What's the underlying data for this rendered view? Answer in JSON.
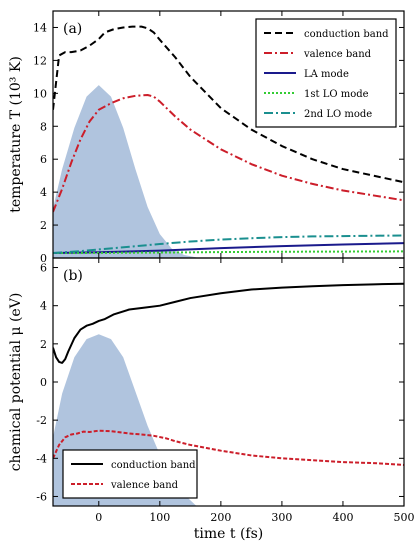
{
  "chart_data": [
    {
      "type": "line",
      "panel_label": "(a)",
      "ylabel": "temperature T (10³ K)",
      "xlim": [
        -75,
        500
      ],
      "ylim": [
        0,
        15
      ],
      "xticks": [
        0,
        100,
        200,
        300,
        400,
        500
      ],
      "yticks": [
        0,
        2,
        4,
        6,
        8,
        10,
        12,
        14
      ],
      "pulse": {
        "color": "#b0c4de",
        "x": [
          -75,
          -60,
          -40,
          -20,
          0,
          20,
          40,
          60,
          80,
          100,
          120,
          140,
          160
        ],
        "y": [
          3.0,
          5.4,
          7.9,
          9.8,
          10.5,
          9.8,
          7.9,
          5.4,
          3.1,
          1.45,
          0.55,
          0.18,
          0.04
        ]
      },
      "legend_position": "top-right",
      "series": [
        {
          "name": "conduction band",
          "color": "#000000",
          "dash": "7,4",
          "x": [
            -75,
            -65,
            -55,
            -45,
            -30,
            -15,
            0,
            10,
            25,
            40,
            55,
            70,
            80,
            90,
            100,
            125,
            150,
            200,
            250,
            300,
            350,
            400,
            450,
            500
          ],
          "y": [
            9.0,
            12.3,
            12.5,
            12.5,
            12.6,
            12.9,
            13.3,
            13.7,
            13.9,
            14.0,
            14.05,
            14.05,
            13.95,
            13.7,
            13.25,
            12.2,
            11.0,
            9.1,
            7.8,
            6.8,
            6.0,
            5.4,
            5.0,
            4.6
          ]
        },
        {
          "name": "valence band",
          "color": "#cc1e2a",
          "dash": "8,3,2,3",
          "x": [
            -75,
            -60,
            -45,
            -30,
            -15,
            0,
            20,
            40,
            60,
            80,
            90,
            100,
            125,
            150,
            200,
            250,
            300,
            350,
            400,
            450,
            500
          ],
          "y": [
            2.8,
            4.2,
            5.8,
            7.2,
            8.3,
            9.0,
            9.4,
            9.7,
            9.85,
            9.9,
            9.8,
            9.5,
            8.6,
            7.8,
            6.6,
            5.7,
            5.0,
            4.5,
            4.1,
            3.8,
            3.5
          ]
        },
        {
          "name": "LA mode",
          "color": "#1a1a8c",
          "dash": "",
          "x": [
            -75,
            0,
            100,
            200,
            300,
            400,
            500
          ],
          "y": [
            0.3,
            0.35,
            0.45,
            0.6,
            0.72,
            0.82,
            0.9
          ]
        },
        {
          "name": "1st LO mode",
          "color": "#33cc33",
          "dash": "2,2",
          "x": [
            -75,
            0,
            100,
            200,
            300,
            400,
            500
          ],
          "y": [
            0.3,
            0.31,
            0.33,
            0.36,
            0.38,
            0.39,
            0.4
          ]
        },
        {
          "name": "2nd LO mode",
          "color": "#1a8f8f",
          "dash": "9,3,2,3",
          "x": [
            -75,
            -30,
            0,
            50,
            100,
            150,
            200,
            250,
            300,
            350,
            400,
            450,
            500
          ],
          "y": [
            0.3,
            0.42,
            0.52,
            0.68,
            0.85,
            1.0,
            1.12,
            1.2,
            1.27,
            1.31,
            1.33,
            1.35,
            1.37
          ]
        }
      ]
    },
    {
      "type": "line",
      "panel_label": "(b)",
      "xlabel": "time t (fs)",
      "ylabel": "chemical potential μ (eV)",
      "xlim": [
        -75,
        500
      ],
      "ylim": [
        -6.5,
        6.5
      ],
      "xticks": [
        0,
        100,
        200,
        300,
        400,
        500
      ],
      "yticks": [
        -6,
        -4,
        -2,
        0,
        2,
        4,
        6
      ],
      "pulse": {
        "color": "#b0c4de",
        "x": [
          -75,
          -60,
          -40,
          -20,
          0,
          20,
          40,
          60,
          80,
          100,
          120,
          140,
          160
        ],
        "y": [
          -2.9,
          -0.6,
          1.3,
          2.25,
          2.5,
          2.25,
          1.3,
          -0.5,
          -2.3,
          -3.8,
          -5.0,
          -5.9,
          -6.5
        ]
      },
      "legend_position": "bottom-left",
      "series": [
        {
          "name": "conduction band",
          "color": "#000000",
          "dash": "",
          "x": [
            -75,
            -70,
            -65,
            -60,
            -55,
            -50,
            -40,
            -30,
            -20,
            -10,
            0,
            10,
            25,
            50,
            75,
            100,
            125,
            150,
            200,
            250,
            300,
            350,
            400,
            450,
            500
          ],
          "y": [
            1.8,
            1.3,
            1.05,
            1.0,
            1.2,
            1.6,
            2.3,
            2.75,
            2.95,
            3.05,
            3.2,
            3.3,
            3.55,
            3.8,
            3.9,
            4.0,
            4.2,
            4.4,
            4.65,
            4.85,
            4.95,
            5.02,
            5.08,
            5.12,
            5.15
          ]
        },
        {
          "name": "valence band",
          "color": "#cc1e2a",
          "dash": "4,2",
          "x": [
            -75,
            -65,
            -55,
            -45,
            -35,
            -25,
            -15,
            0,
            20,
            50,
            70,
            90,
            110,
            125,
            150,
            200,
            250,
            300,
            350,
            400,
            450,
            500
          ],
          "y": [
            -4.0,
            -3.3,
            -2.9,
            -2.75,
            -2.7,
            -2.6,
            -2.62,
            -2.55,
            -2.58,
            -2.7,
            -2.75,
            -2.82,
            -2.95,
            -3.1,
            -3.3,
            -3.6,
            -3.85,
            -4.0,
            -4.1,
            -4.2,
            -4.25,
            -4.35
          ]
        }
      ]
    }
  ]
}
